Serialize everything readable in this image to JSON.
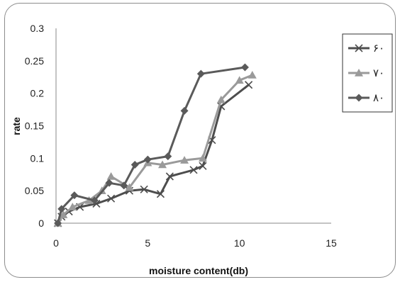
{
  "chart_data": {
    "type": "line",
    "title": "",
    "xlabel": "moisture content(db)",
    "ylabel": "rate",
    "xlim": [
      0,
      15
    ],
    "ylim": [
      0,
      0.3
    ],
    "x_ticks": [
      "0",
      "5",
      "10",
      "15"
    ],
    "y_ticks": [
      "0",
      "0.05",
      "0.1",
      "0.15",
      "0.2",
      "0.25",
      "0.3"
    ],
    "grid": false,
    "legend_position": "right",
    "series": [
      {
        "name": "۶۰",
        "marker": "x",
        "color": "#4d4d4d",
        "x": [
          0.1,
          0.3,
          0.7,
          1.3,
          2.2,
          3.0,
          4.0,
          4.8,
          5.7,
          6.2,
          7.5,
          8.0,
          8.5,
          9.0,
          10.5
        ],
        "y": [
          0.0,
          0.01,
          0.018,
          0.025,
          0.03,
          0.038,
          0.05,
          0.052,
          0.045,
          0.072,
          0.082,
          0.088,
          0.128,
          0.18,
          0.213
        ]
      },
      {
        "name": "۷۰",
        "marker": "triangle",
        "color": "#9a9a9a",
        "x": [
          0.1,
          0.4,
          0.9,
          1.8,
          2.5,
          3.0,
          4.0,
          5.0,
          5.8,
          7.0,
          8.0,
          9.0,
          10.0,
          10.7
        ],
        "y": [
          0.0,
          0.013,
          0.025,
          0.035,
          0.05,
          0.072,
          0.055,
          0.093,
          0.09,
          0.097,
          0.1,
          0.19,
          0.22,
          0.228
        ]
      },
      {
        "name": "۸۰",
        "marker": "diamond",
        "color": "#5a5a5a",
        "x": [
          0.1,
          0.3,
          1.0,
          2.1,
          2.9,
          3.7,
          4.3,
          5.0,
          6.1,
          7.0,
          7.9,
          10.3
        ],
        "y": [
          0.0,
          0.022,
          0.043,
          0.035,
          0.062,
          0.058,
          0.09,
          0.098,
          0.103,
          0.173,
          0.23,
          0.24
        ]
      }
    ]
  }
}
